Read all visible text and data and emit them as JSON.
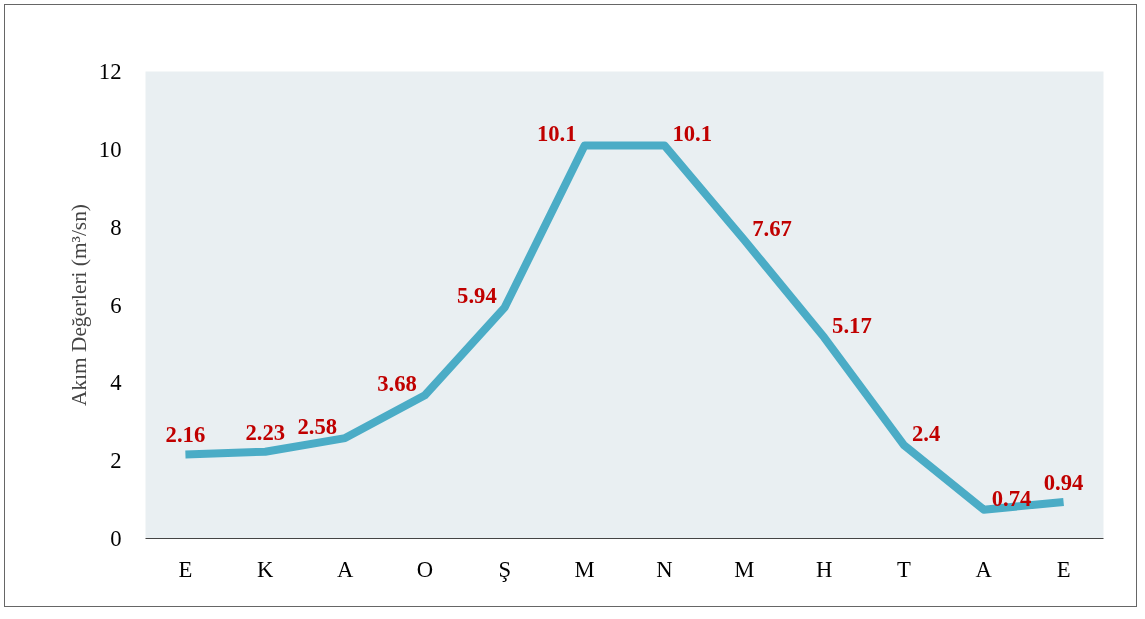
{
  "chart_data": {
    "type": "line",
    "ylabel": "Akım Değerleri (m³/sn)",
    "categories": [
      "E",
      "K",
      "A",
      "O",
      "Ş",
      "M",
      "N",
      "M",
      "H",
      "T",
      "A",
      "E"
    ],
    "series": [
      {
        "color": "#4bacc6",
        "values": [
          2.16,
          2.23,
          2.58,
          3.68,
          5.94,
          10.1,
          10.1,
          7.67,
          5.17,
          2.4,
          0.74,
          0.94
        ]
      }
    ],
    "ylim": [
      0,
      12
    ],
    "yticks": [
      0,
      2,
      4,
      6,
      8,
      10,
      12
    ],
    "data_labels": true,
    "grid": false,
    "marker": "none",
    "line_style": "solid"
  }
}
